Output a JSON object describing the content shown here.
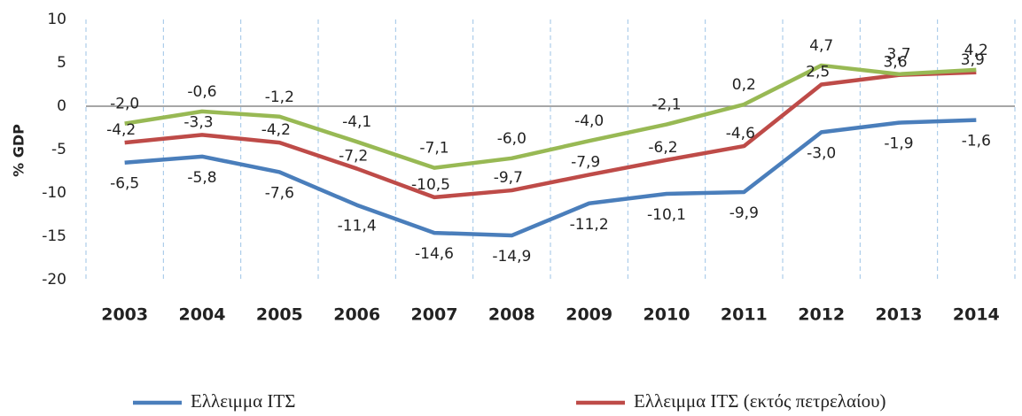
{
  "chart_data": {
    "type": "line",
    "y_label": "% GDP",
    "categories": [
      "2003",
      "2004",
      "2005",
      "2006",
      "2007",
      "2008",
      "2009",
      "2010",
      "2011",
      "2012",
      "2013",
      "2014"
    ],
    "series": [
      {
        "name": "Ελλειμμα ΙΤΣ",
        "color": "#4a7ebb",
        "values": [
          -6.5,
          -5.8,
          -7.6,
          -11.4,
          -14.6,
          -14.9,
          -11.2,
          -10.1,
          -9.9,
          -3.0,
          -1.9,
          -1.6
        ],
        "value_labels": [
          "-6,5",
          "-5,8",
          "-7,6",
          "-11,4",
          "-14,6",
          "-14,9",
          "-11,2",
          "-10,1",
          "-9,9",
          "-3,0",
          "-1,9",
          "-1,6"
        ]
      },
      {
        "name": "Ελλειμμα ΙΤΣ (εκτός πετρελαίου)",
        "color": "#be4b48",
        "values": [
          -4.2,
          -3.3,
          -4.2,
          -7.2,
          -10.5,
          -9.7,
          -7.9,
          -6.2,
          -4.6,
          2.5,
          3.6,
          3.9
        ],
        "value_labels": [
          "-4,2",
          "-3,3",
          "-4,2",
          "-7,2",
          "-10,5",
          "-9,7",
          "-7,9",
          "-6,2",
          "-4,6",
          "2,5",
          "3,6",
          "3,9"
        ]
      },
      {
        "color": "#98b954",
        "values": [
          -2.0,
          -0.6,
          -1.2,
          -4.1,
          -7.1,
          -6.0,
          -4.0,
          -2.1,
          0.2,
          4.7,
          3.7,
          4.2
        ],
        "value_labels": [
          "-2,0",
          "-0,6",
          "-1,2",
          "-4,1",
          "-7,1",
          "-6,0",
          "-4,0",
          "-2,1",
          "0,2",
          "4,7",
          "3,7",
          "4,2"
        ]
      }
    ],
    "ylim": [
      -20,
      10
    ],
    "yticks": [
      10,
      5,
      0,
      -5,
      -10,
      -15,
      -20
    ],
    "grid": "vertical-dashed",
    "legend": "bottom"
  }
}
